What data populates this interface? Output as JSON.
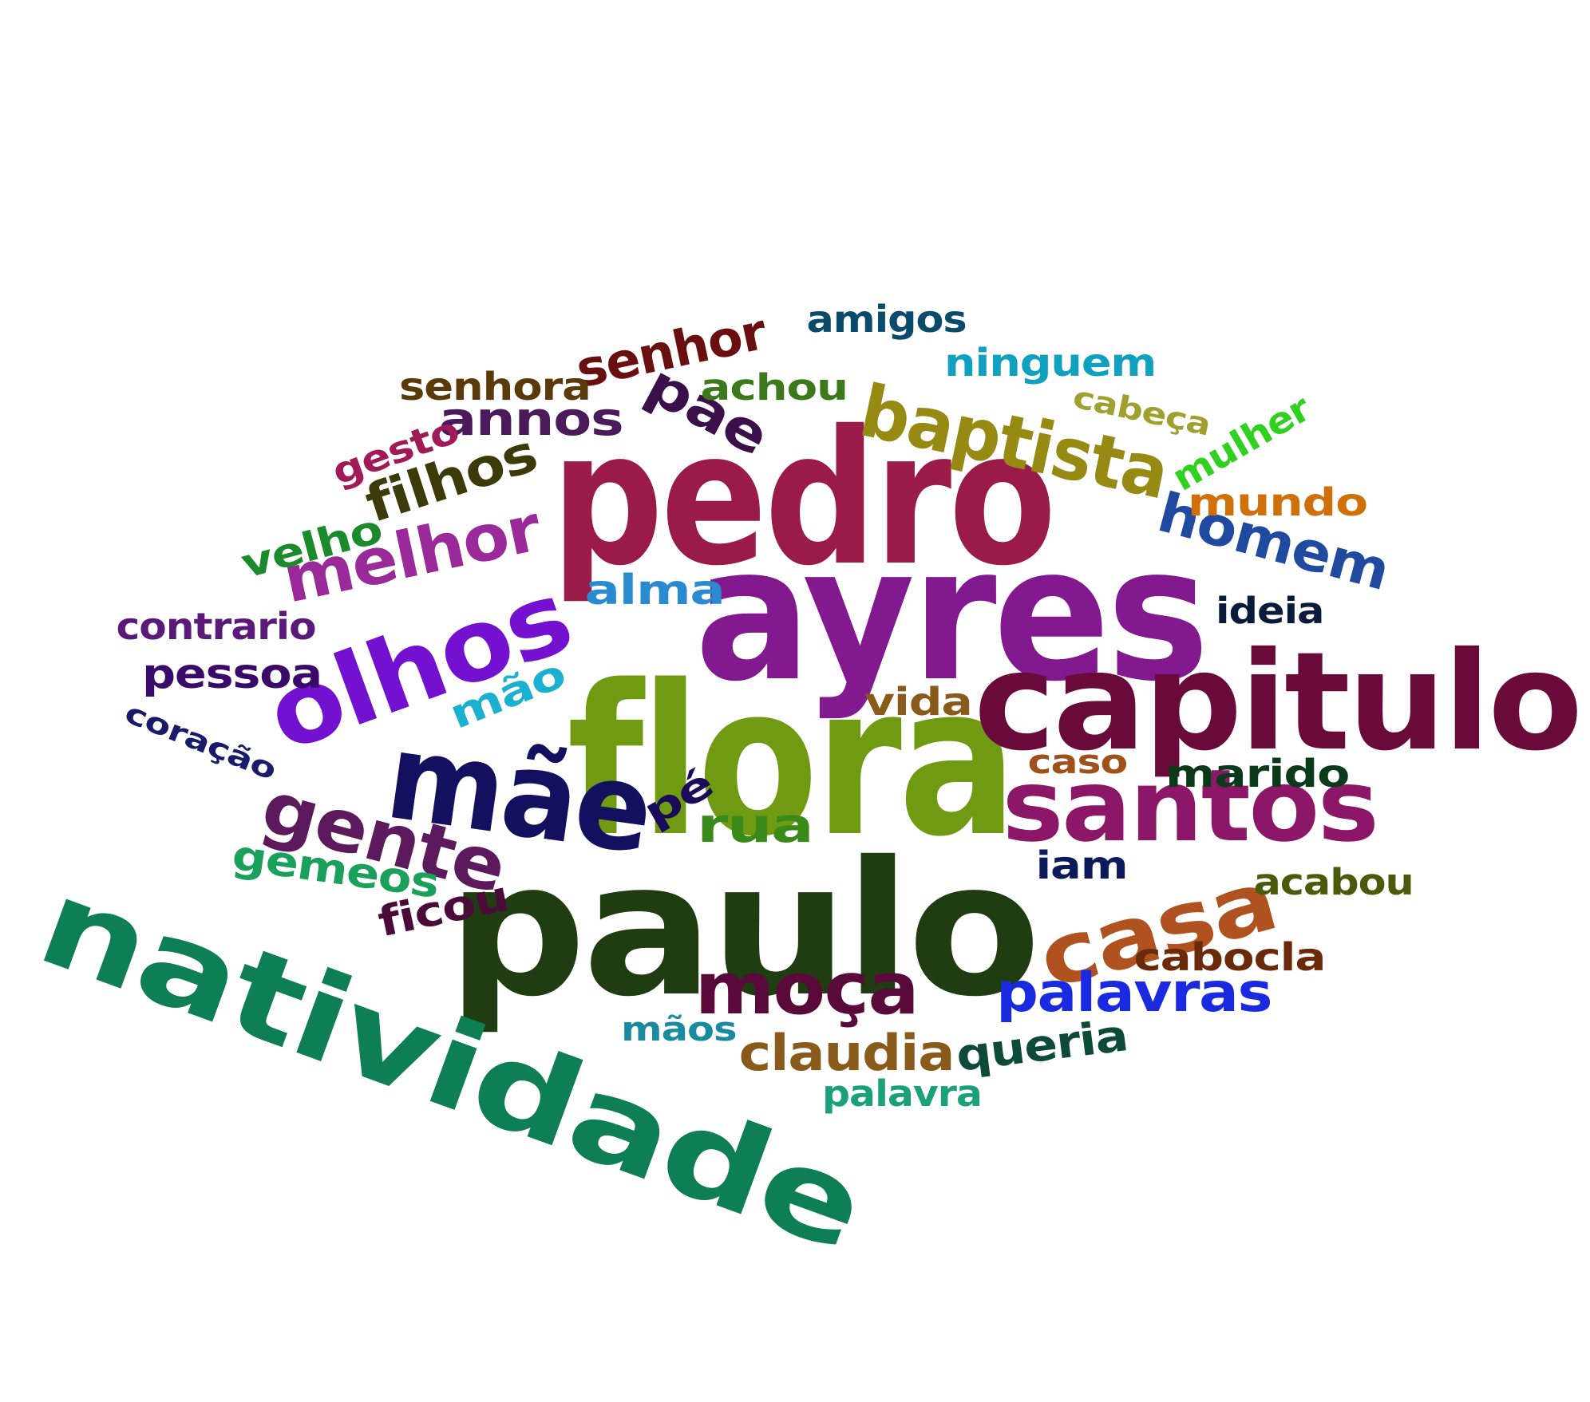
{
  "words": [
    {
      "text": "pedro",
      "color": "#9a1a4a"
    },
    {
      "text": "ayres",
      "color": "#82198f"
    },
    {
      "text": "flora",
      "color": "#6f9a12"
    },
    {
      "text": "paulo",
      "color": "#1f3d10"
    },
    {
      "text": "natividade",
      "color": "#0e7e55"
    },
    {
      "text": "capitulo",
      "color": "#6a0a3a"
    },
    {
      "text": "olhos",
      "color": "#7410d0"
    },
    {
      "text": "mãe",
      "color": "#141060"
    },
    {
      "text": "santos",
      "color": "#8c1668"
    },
    {
      "text": "casa",
      "color": "#b05220"
    },
    {
      "text": "gente",
      "color": "#5c1a5c"
    },
    {
      "text": "baptista",
      "color": "#968a12"
    },
    {
      "text": "moça",
      "color": "#5a0a3a"
    },
    {
      "text": "melhor",
      "color": "#9a2a9a"
    },
    {
      "text": "palavras",
      "color": "#1a2ae0"
    },
    {
      "text": "homem",
      "color": "#1f4aa0"
    },
    {
      "text": "senhor",
      "color": "#6a0f10"
    },
    {
      "text": "pae",
      "color": "#3a0f4a"
    },
    {
      "text": "filhos",
      "color": "#3d3a0a"
    },
    {
      "text": "claudia",
      "color": "#8a5a1a"
    },
    {
      "text": "annos",
      "color": "#4a1a5a"
    },
    {
      "text": "rua",
      "color": "#3a8a1a"
    },
    {
      "text": "alma",
      "color": "#2a8ad0"
    },
    {
      "text": "queria",
      "color": "#0e4a3a"
    },
    {
      "text": "mundo",
      "color": "#d0700a"
    },
    {
      "text": "velho",
      "color": "#1a8a2a"
    },
    {
      "text": "contrario",
      "color": "#5a1a7a"
    },
    {
      "text": "pessoa",
      "color": "#3a0a6a"
    },
    {
      "text": "mão",
      "color": "#1ab0d0"
    },
    {
      "text": "senhora",
      "color": "#5a3a0a"
    },
    {
      "text": "gesto",
      "color": "#a01a5a"
    },
    {
      "text": "ninguem",
      "color": "#10a0c0"
    },
    {
      "text": "achou",
      "color": "#3a7a1a"
    },
    {
      "text": "amigos",
      "color": "#0a4a6a"
    },
    {
      "text": "cabeça",
      "color": "#a0a030"
    },
    {
      "text": "mulher",
      "color": "#30d020"
    },
    {
      "text": "ideia",
      "color": "#0a1a3a"
    },
    {
      "text": "vida",
      "color": "#8a5a1a"
    },
    {
      "text": "caso",
      "color": "#a0501a"
    },
    {
      "text": "marido",
      "color": "#0a3a1a"
    },
    {
      "text": "iam",
      "color": "#0a1a5a"
    },
    {
      "text": "acabou",
      "color": "#4a5a0a"
    },
    {
      "text": "cabocla",
      "color": "#6a2a0a"
    },
    {
      "text": "pé",
      "color": "#1a0a5a"
    },
    {
      "text": "gemeos",
      "color": "#1aa05a"
    },
    {
      "text": "ficou",
      "color": "#4a0a3a"
    },
    {
      "text": "coração",
      "color": "#1a1a6a"
    },
    {
      "text": "mãos",
      "color": "#1a8aa0"
    },
    {
      "text": "palavra",
      "color": "#1aa07a"
    }
  ]
}
